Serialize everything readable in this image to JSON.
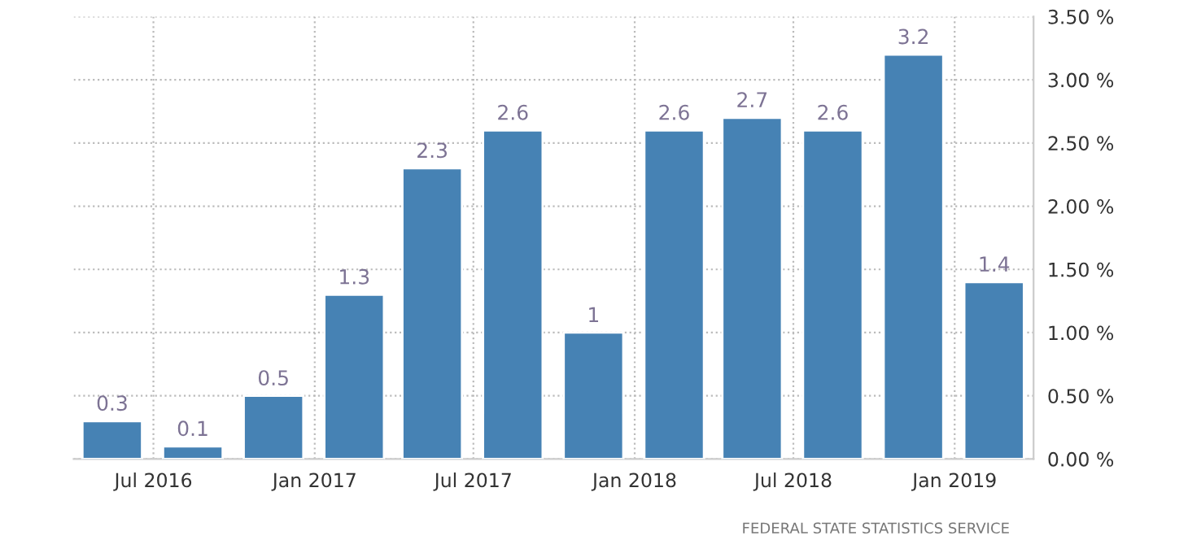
{
  "chart_data": {
    "type": "bar",
    "x": [
      "2016-05-15",
      "2016-08-15",
      "2016-11-15",
      "2017-02-15",
      "2017-05-15",
      "2017-08-15",
      "2017-11-15",
      "2018-02-15",
      "2018-05-15",
      "2018-08-15",
      "2018-11-15",
      "2019-02-15"
    ],
    "values": [
      0.3,
      0.1,
      0.5,
      1.3,
      2.3,
      2.6,
      1,
      2.6,
      2.7,
      2.6,
      3.2,
      1.4
    ],
    "color": "#4682b4",
    "data_labels": true,
    "xlim": [
      "2016-04-01",
      "2019-04-01"
    ],
    "xticks": [
      {
        "value": "2016-07",
        "label": "Jul 2016"
      },
      {
        "value": "2017-01",
        "label": "Jan 2017"
      },
      {
        "value": "2017-07",
        "label": "Jul 2017"
      },
      {
        "value": "2018-01",
        "label": "Jan 2018"
      },
      {
        "value": "2018-07",
        "label": "Jul 2018"
      },
      {
        "value": "2019-01",
        "label": "Jan 2019"
      }
    ],
    "ylim": [
      0,
      3.5
    ],
    "yticks": [
      {
        "value": 0,
        "label": "0.00 %"
      },
      {
        "value": 0.5,
        "label": "0.50 %"
      },
      {
        "value": 1,
        "label": "1.00 %"
      },
      {
        "value": 1.5,
        "label": "1.50 %"
      },
      {
        "value": 2,
        "label": "2.00 %"
      },
      {
        "value": 2.5,
        "label": "2.50 %"
      },
      {
        "value": 3,
        "label": "3.00 %"
      },
      {
        "value": 3.5,
        "label": "3.50 %"
      }
    ],
    "grid": true,
    "annotations": [
      "FEDERAL STATE STATISTICS SERVICE"
    ]
  }
}
